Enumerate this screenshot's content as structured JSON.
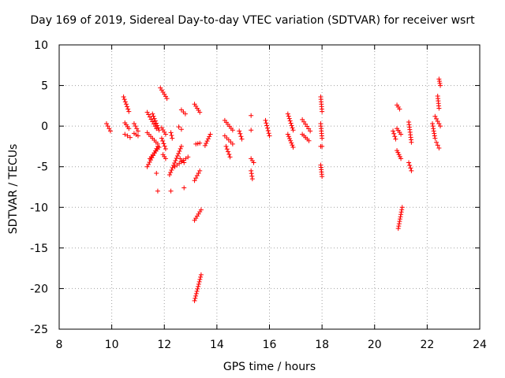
{
  "chart_data": {
    "type": "scatter",
    "title": "Day 169 of 2019, Sidereal Day-to-day VTEC variation (SDTVAR) for receiver wsrt",
    "xlabel": "GPS time / hours",
    "ylabel": "SDTVAR / TECUs",
    "xlim": [
      8,
      24
    ],
    "ylim": [
      -25,
      10
    ],
    "xticks": [
      8,
      10,
      12,
      14,
      16,
      18,
      20,
      22,
      24
    ],
    "yticks": [
      -25,
      -20,
      -15,
      -10,
      -5,
      0,
      5,
      10
    ],
    "grid": true,
    "marker": "+",
    "color": "#ff0000",
    "series": [
      {
        "name": "SDTVAR",
        "tracks": [
          {
            "x": [
              9.8,
              9.95
            ],
            "y": [
              0.3,
              -0.6
            ]
          },
          {
            "x": [
              10.45,
              10.65
            ],
            "y": [
              3.6,
              1.8
            ]
          },
          {
            "x": [
              10.5,
              10.65
            ],
            "y": [
              0.4,
              -0.3
            ]
          },
          {
            "x": [
              10.5,
              10.7
            ],
            "y": [
              -1.0,
              -1.4
            ]
          },
          {
            "x": [
              10.85,
              11.0
            ],
            "y": [
              0.3,
              -0.6
            ]
          },
          {
            "x": [
              10.85,
              11.0
            ],
            "y": [
              -0.9,
              -1.2
            ]
          },
          {
            "x": [
              11.35,
              11.7
            ],
            "y": [
              1.7,
              -0.3
            ]
          },
          {
            "x": [
              11.35,
              11.75
            ],
            "y": [
              -0.8,
              -2.2
            ]
          },
          {
            "x": [
              11.35,
              11.75
            ],
            "y": [
              -5.0,
              -2.5
            ]
          },
          {
            "x": [
              11.45,
              11.8
            ],
            "y": [
              -4.0,
              -2.6
            ]
          },
          {
            "x": [
              11.55,
              11.8
            ],
            "y": [
              1.5,
              -0.5
            ]
          },
          {
            "x": [
              11.7,
              11.7
            ],
            "y": [
              -5.8,
              -5.8
            ]
          },
          {
            "x": [
              11.75,
              11.75
            ],
            "y": [
              -8.0,
              -8.0
            ]
          },
          {
            "x": [
              11.85,
              12.1
            ],
            "y": [
              4.7,
              3.4
            ]
          },
          {
            "x": [
              11.9,
              12.05
            ],
            "y": [
              -0.2,
              -1.0
            ]
          },
          {
            "x": [
              11.9,
              12.05
            ],
            "y": [
              -1.5,
              -2.8
            ]
          },
          {
            "x": [
              11.95,
              12.05
            ],
            "y": [
              -3.5,
              -4.0
            ]
          },
          {
            "x": [
              12.2,
              12.65
            ],
            "y": [
              -6.0,
              -2.5
            ]
          },
          {
            "x": [
              12.25,
              12.3
            ],
            "y": [
              -0.8,
              -1.5
            ]
          },
          {
            "x": [
              12.25,
              12.25
            ],
            "y": [
              -8.0,
              -8.0
            ]
          },
          {
            "x": [
              12.4,
              12.9
            ],
            "y": [
              -5.0,
              -3.8
            ]
          },
          {
            "x": [
              12.55,
              12.65
            ],
            "y": [
              -0.1,
              -0.4
            ]
          },
          {
            "x": [
              12.6,
              12.75
            ],
            "y": [
              -4.0,
              -4.5
            ]
          },
          {
            "x": [
              12.65,
              12.8
            ],
            "y": [
              2.0,
              1.5
            ]
          },
          {
            "x": [
              12.75,
              12.75
            ],
            "y": [
              -7.6,
              -7.6
            ]
          },
          {
            "x": [
              13.15,
              13.35
            ],
            "y": [
              2.7,
              1.7
            ]
          },
          {
            "x": [
              13.15,
              13.4
            ],
            "y": [
              -11.6,
              -10.3
            ]
          },
          {
            "x": [
              13.15,
              13.4
            ],
            "y": [
              -21.5,
              -18.3
            ]
          },
          {
            "x": [
              13.15,
              13.35
            ],
            "y": [
              -6.7,
              -5.5
            ]
          },
          {
            "x": [
              13.2,
              13.35
            ],
            "y": [
              -2.2,
              -2.1
            ]
          },
          {
            "x": [
              13.55,
              13.75
            ],
            "y": [
              -2.4,
              -1.0
            ]
          },
          {
            "x": [
              14.3,
              14.6
            ],
            "y": [
              0.7,
              -0.5
            ]
          },
          {
            "x": [
              14.3,
              14.6
            ],
            "y": [
              -1.2,
              -2.2
            ]
          },
          {
            "x": [
              14.35,
              14.5
            ],
            "y": [
              -2.5,
              -3.8
            ]
          },
          {
            "x": [
              14.85,
              14.95
            ],
            "y": [
              -0.6,
              -1.6
            ]
          },
          {
            "x": [
              15.3,
              15.3
            ],
            "y": [
              1.3,
              1.3
            ]
          },
          {
            "x": [
              15.3,
              15.3
            ],
            "y": [
              -0.5,
              -0.5
            ]
          },
          {
            "x": [
              15.3,
              15.4
            ],
            "y": [
              -4.0,
              -4.5
            ]
          },
          {
            "x": [
              15.3,
              15.35
            ],
            "y": [
              -5.5,
              -6.5
            ]
          },
          {
            "x": [
              15.85,
              16.0
            ],
            "y": [
              0.7,
              -1.2
            ]
          },
          {
            "x": [
              16.7,
              16.9
            ],
            "y": [
              1.5,
              -0.5
            ]
          },
          {
            "x": [
              16.7,
              16.9
            ],
            "y": [
              -1.0,
              -2.6
            ]
          },
          {
            "x": [
              17.25,
              17.55
            ],
            "y": [
              0.8,
              -0.6
            ]
          },
          {
            "x": [
              17.25,
              17.5
            ],
            "y": [
              -1.0,
              -1.8
            ]
          },
          {
            "x": [
              17.95,
              18.0
            ],
            "y": [
              3.6,
              1.8
            ]
          },
          {
            "x": [
              17.95,
              18.0
            ],
            "y": [
              0.3,
              -1.5
            ]
          },
          {
            "x": [
              17.95,
              18.0
            ],
            "y": [
              -2.5,
              -2.5
            ]
          },
          {
            "x": [
              17.95,
              18.0
            ],
            "y": [
              -4.8,
              -6.2
            ]
          },
          {
            "x": [
              20.7,
              20.8
            ],
            "y": [
              -0.6,
              -1.6
            ]
          },
          {
            "x": [
              20.85,
              20.95
            ],
            "y": [
              2.6,
              2.1
            ]
          },
          {
            "x": [
              20.85,
              21.0
            ],
            "y": [
              -0.3,
              -1.0
            ]
          },
          {
            "x": [
              20.85,
              21.0
            ],
            "y": [
              -3.0,
              -4.0
            ]
          },
          {
            "x": [
              20.9,
              21.05
            ],
            "y": [
              -12.6,
              -10.0
            ]
          },
          {
            "x": [
              21.3,
              21.4
            ],
            "y": [
              0.5,
              -2.0
            ]
          },
          {
            "x": [
              21.3,
              21.4
            ],
            "y": [
              -4.5,
              -5.5
            ]
          },
          {
            "x": [
              22.2,
              22.3
            ],
            "y": [
              0.3,
              -1.5
            ]
          },
          {
            "x": [
              22.3,
              22.5
            ],
            "y": [
              1.2,
              0.0
            ]
          },
          {
            "x": [
              22.35,
              22.45
            ],
            "y": [
              -2.0,
              -2.7
            ]
          },
          {
            "x": [
              22.45,
              22.5
            ],
            "y": [
              5.8,
              5.0
            ]
          },
          {
            "x": [
              22.4,
              22.45
            ],
            "y": [
              3.7,
              2.2
            ]
          }
        ]
      }
    ]
  }
}
